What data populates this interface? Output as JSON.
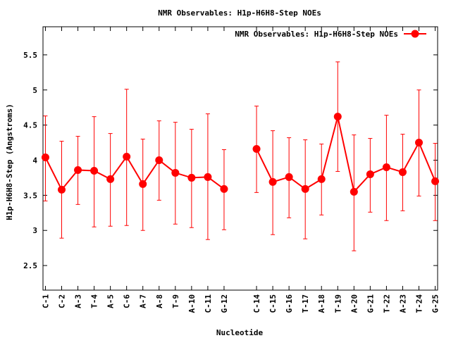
{
  "chart_data": {
    "type": "line",
    "title": "NMR Observables: H1p-H6H8-Step NOEs",
    "xlabel": "Nucleotide",
    "ylabel": "H1p-H6H8-Step (Angstroms)",
    "ylim": [
      2.15,
      5.9
    ],
    "y_ticks": [
      "2.5",
      "3",
      "3.5",
      "4",
      "4.5",
      "5",
      "5.5"
    ],
    "y_tick_values": [
      2.5,
      3,
      3.5,
      4,
      4.5,
      5,
      5.5
    ],
    "legend": "top-right",
    "grid": false,
    "categories": [
      "C-1",
      "C-2",
      "A-3",
      "T-4",
      "A-5",
      "C-6",
      "A-7",
      "A-8",
      "T-9",
      "A-10",
      "C-11",
      "G-12",
      "C-14",
      "C-15",
      "G-16",
      "T-17",
      "A-18",
      "T-19",
      "A-20",
      "G-21",
      "T-22",
      "A-23",
      "T-24",
      "G-25"
    ],
    "x": [
      1,
      2,
      3,
      4,
      5,
      6,
      7,
      8,
      9,
      10,
      11,
      12,
      14,
      15,
      16,
      17,
      18,
      19,
      20,
      21,
      22,
      23,
      24,
      25
    ],
    "series": [
      {
        "name": "NMR Observables: H1p-H6H8-Step NOEs",
        "color": "#ff0000",
        "values": [
          4.04,
          3.58,
          3.86,
          3.85,
          3.73,
          4.05,
          3.66,
          4.0,
          3.82,
          3.75,
          3.76,
          3.59,
          4.16,
          3.69,
          3.76,
          3.59,
          3.73,
          4.62,
          3.55,
          3.8,
          3.9,
          3.83,
          4.25,
          3.7
        ],
        "err_low": [
          3.42,
          2.89,
          3.37,
          3.05,
          3.06,
          3.07,
          3.0,
          3.43,
          3.09,
          3.04,
          2.87,
          3.01,
          3.54,
          2.94,
          3.18,
          2.88,
          3.22,
          3.84,
          2.71,
          3.26,
          3.14,
          3.28,
          3.49,
          3.14
        ],
        "err_high": [
          4.63,
          4.27,
          4.34,
          4.62,
          4.38,
          5.01,
          4.3,
          4.56,
          4.54,
          4.44,
          4.66,
          4.15,
          4.77,
          4.42,
          4.32,
          4.29,
          4.23,
          5.4,
          4.36,
          4.31,
          4.64,
          4.37,
          5.0,
          4.24
        ],
        "segments": [
          [
            0,
            11
          ],
          [
            12,
            23
          ]
        ]
      }
    ]
  }
}
